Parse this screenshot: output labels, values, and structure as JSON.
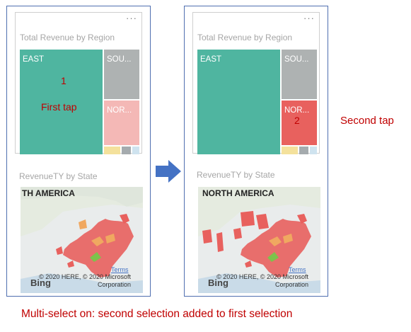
{
  "panels": [
    {
      "more_label": "···",
      "treemap_title": "Total Revenue by Region",
      "tiles": [
        {
          "label": "EAST",
          "color": "#4fb5a0"
        },
        {
          "label": "SOU...",
          "color": "#aeb2b2"
        },
        {
          "label": "NOR...",
          "color": "#f4b8b6"
        }
      ],
      "tap_number": "1",
      "tap_text": "First tap",
      "map_title": "RevenueTY by State",
      "map_heading": "TH AMERICA",
      "terms": "Terms",
      "attribution": "© 2020 HERE, © 2020 Microsoft Corporation",
      "bing": "Bing"
    },
    {
      "more_label": "···",
      "treemap_title": "Total Revenue by Region",
      "tiles": [
        {
          "label": "EAST",
          "color": "#4fb5a0"
        },
        {
          "label": "SOU...",
          "color": "#aeb2b2"
        },
        {
          "label": "NOR...",
          "color": "#e8615e"
        }
      ],
      "tap_number": "2",
      "map_title": "RevenueTY by State",
      "map_heading": "NORTH AMERICA",
      "terms": "Terms",
      "attribution": "© 2020 HERE, © 2020 Microsoft Corporation",
      "bing": "Bing"
    }
  ],
  "second_tap_label": "Second tap",
  "caption": "Multi-select on: second selection added to first selection",
  "colors": {
    "accent_red": "#c00000",
    "arrow": "#4472c4",
    "selected_state": "#e8615e",
    "highlight_state": "#7dc24b"
  }
}
